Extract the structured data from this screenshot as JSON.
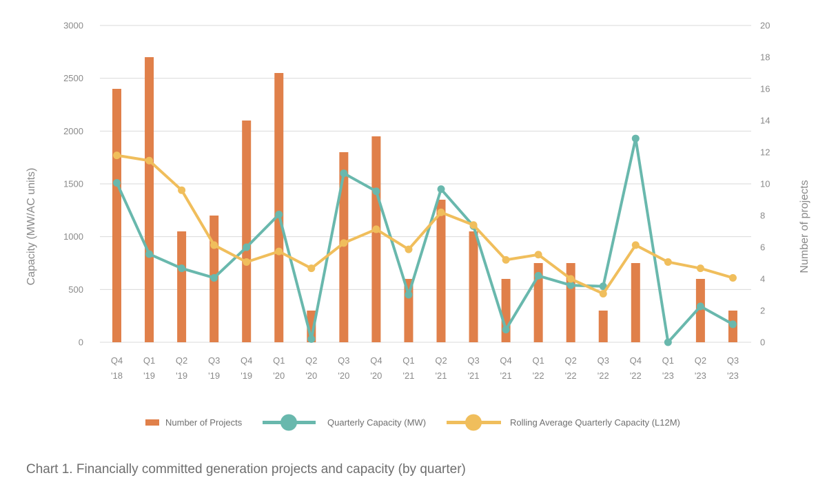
{
  "caption": "Chart 1. Financially committed generation projects and capacity (by quarter)",
  "colors": {
    "bars": "#e0804a",
    "quarterly": "#69b8ad",
    "rolling": "#f0be5c",
    "grid": "#d9d9d9",
    "text": "#8a8a8a"
  },
  "chart_data": {
    "type": "bar+line",
    "categories": [
      [
        "Q4",
        "'18"
      ],
      [
        "Q1",
        "'19"
      ],
      [
        "Q2",
        "'19"
      ],
      [
        "Q3",
        "'19"
      ],
      [
        "Q4",
        "'19"
      ],
      [
        "Q1",
        "'20"
      ],
      [
        "Q2",
        "'20"
      ],
      [
        "Q3",
        "'20"
      ],
      [
        "Q4",
        "'20"
      ],
      [
        "Q1",
        "'21"
      ],
      [
        "Q2",
        "'21"
      ],
      [
        "Q3",
        "'21"
      ],
      [
        "Q4",
        "'21"
      ],
      [
        "Q1",
        "'22"
      ],
      [
        "Q2",
        "'22"
      ],
      [
        "Q3",
        "'22"
      ],
      [
        "Q4",
        "'22"
      ],
      [
        "Q1",
        "'23"
      ],
      [
        "Q2",
        "'23"
      ],
      [
        "Q3",
        "'23"
      ]
    ],
    "y_left": {
      "label": "Capacity (MW/AC units)",
      "range": [
        0,
        3000
      ],
      "ticks": [
        0,
        500,
        1000,
        1500,
        2000,
        2500,
        3000
      ]
    },
    "y_right": {
      "label": "Number of projects",
      "range": [
        0,
        20
      ],
      "ticks": [
        0,
        2,
        4,
        6,
        8,
        10,
        12,
        14,
        16,
        18,
        20
      ]
    },
    "grid": true,
    "legend_position": "bottom",
    "series": [
      {
        "name": "Number of Projects",
        "type": "bar",
        "axis": "right",
        "values": [
          16,
          18,
          7,
          8,
          14,
          17,
          2,
          12,
          13,
          4,
          9,
          7,
          4,
          5,
          5,
          2,
          5,
          0,
          4,
          2
        ]
      },
      {
        "name": "Quarterly Capacity (MW)",
        "type": "line",
        "axis": "left",
        "values": [
          1510,
          835,
          700,
          610,
          900,
          1210,
          30,
          1600,
          1430,
          450,
          1450,
          1100,
          120,
          630,
          540,
          530,
          1930,
          0,
          340,
          170
        ]
      },
      {
        "name": "Rolling Average Quarterly Capacity (L12M)",
        "type": "line",
        "axis": "left",
        "values": [
          1770,
          1720,
          1440,
          920,
          760,
          860,
          700,
          940,
          1070,
          880,
          1230,
          1110,
          780,
          830,
          600,
          460,
          920,
          760,
          700,
          610
        ]
      }
    ]
  }
}
